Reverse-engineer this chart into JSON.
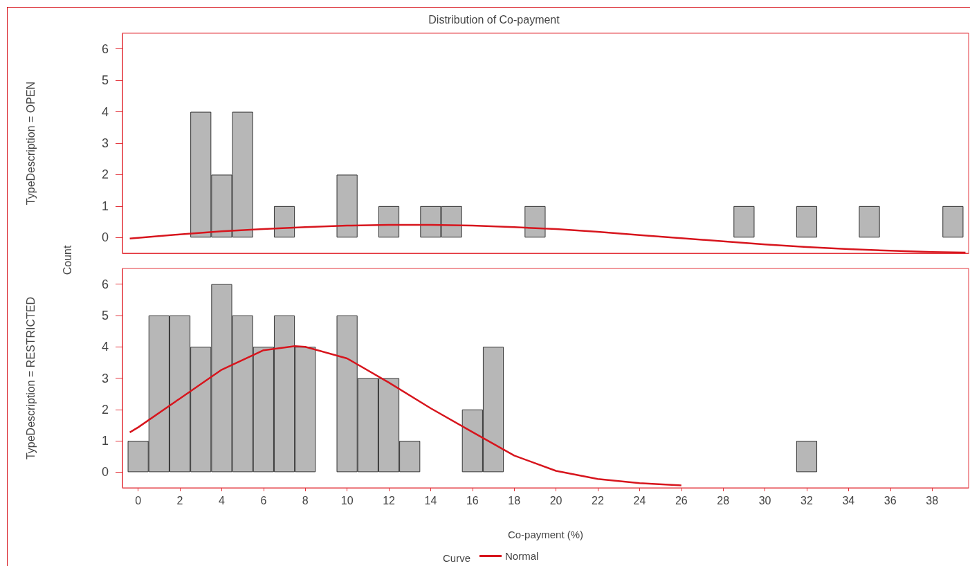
{
  "chart_data": [
    {
      "type": "histogram",
      "title": "Distribution of Co-payment",
      "ylabel": "TypeDescription = OPEN",
      "annotations": [
        "Count"
      ],
      "tick_labels": "y",
      "xlim": [
        -0.75,
        39.75
      ],
      "ylim": [
        -0.5,
        6.5
      ],
      "xticks": [
        0,
        2,
        4,
        6,
        8,
        10,
        12,
        14,
        16,
        18,
        20,
        22,
        24,
        26,
        28,
        30,
        32,
        34,
        36,
        38
      ],
      "yticks": [
        0,
        1,
        2,
        3,
        4,
        5,
        6
      ],
      "series": [
        {
          "color": "#b7b7b7",
          "bins": [
            -0.5,
            0.5,
            1.5,
            2.5,
            3.5,
            4.5,
            5.5,
            6.5,
            7.5,
            8.5,
            9.5,
            10.5,
            11.5,
            12.5,
            13.5,
            14.5,
            15.5,
            16.5,
            17.5,
            18.5,
            19.5,
            20.5,
            21.5,
            22.5,
            23.5,
            24.5,
            25.5,
            26.5,
            27.5,
            28.5,
            29.5,
            30.5,
            31.5,
            32.5,
            33.5,
            34.5,
            35.5,
            36.5,
            37.5,
            38.5,
            39.5
          ],
          "values": [
            0,
            0,
            0,
            4,
            2,
            4,
            0,
            1,
            0,
            0,
            2,
            0,
            1,
            0,
            1,
            1,
            0,
            0,
            0,
            1,
            0,
            0,
            0,
            0,
            0,
            0,
            0,
            0,
            0,
            1,
            0,
            0,
            1,
            0,
            0,
            1,
            0,
            0,
            0,
            1
          ]
        },
        {
          "type": "line",
          "color": "#d7151d",
          "x": [
            -0.4,
            2,
            4,
            6,
            8,
            10,
            12,
            14,
            16,
            18,
            20,
            22,
            24,
            26,
            28,
            30,
            32,
            34,
            36,
            38,
            39.6
          ],
          "values": [
            -0.03,
            0.1,
            0.2,
            0.27,
            0.33,
            0.38,
            0.4,
            0.4,
            0.38,
            0.33,
            0.27,
            0.18,
            0.08,
            -0.02,
            -0.12,
            -0.22,
            -0.3,
            -0.37,
            -0.42,
            -0.46,
            -0.48
          ]
        }
      ]
    },
    {
      "type": "histogram",
      "ylabel": "TypeDescription = RESTRICTED",
      "xlabel": "Co-payment (%)",
      "legend": "bottom",
      "legend_title": "Curve",
      "xlim": [
        -0.75,
        39.75
      ],
      "ylim": [
        -0.5,
        6.5
      ],
      "xticks": [
        0,
        2,
        4,
        6,
        8,
        10,
        12,
        14,
        16,
        18,
        20,
        22,
        24,
        26,
        28,
        30,
        32,
        34,
        36,
        38
      ],
      "yticks": [
        0,
        1,
        2,
        3,
        4,
        5,
        6
      ],
      "series": [
        {
          "color": "#b7b7b7",
          "bins": [
            -0.5,
            0.5,
            1.5,
            2.5,
            3.5,
            4.5,
            5.5,
            6.5,
            7.5,
            8.5,
            9.5,
            10.5,
            11.5,
            12.5,
            13.5,
            14.5,
            15.5,
            16.5,
            17.5,
            18.5,
            19.5,
            20.5,
            21.5,
            22.5,
            23.5,
            24.5,
            25.5,
            26.5,
            27.5,
            28.5,
            29.5,
            30.5,
            31.5,
            32.5,
            33.5,
            34.5,
            35.5,
            36.5,
            37.5,
            38.5,
            39.5
          ],
          "values": [
            1,
            5,
            5,
            4,
            6,
            5,
            4,
            5,
            4,
            0,
            5,
            3,
            3,
            1,
            0,
            0,
            2,
            4,
            0,
            0,
            0,
            0,
            0,
            0,
            0,
            0,
            0,
            0,
            0,
            0,
            0,
            0,
            1,
            0,
            0,
            0,
            0,
            0,
            0,
            0
          ]
        },
        {
          "type": "line",
          "name": "Normal",
          "color": "#d7151d",
          "x": [
            -0.4,
            0,
            2,
            4,
            6,
            7.5,
            8,
            10,
            12,
            14,
            16,
            18,
            20,
            22,
            24,
            26
          ],
          "values": [
            1.27,
            1.43,
            2.35,
            3.27,
            3.89,
            4.02,
            4.0,
            3.63,
            2.86,
            2.04,
            1.28,
            0.53,
            0.04,
            -0.22,
            -0.35,
            -0.42
          ]
        }
      ]
    }
  ]
}
